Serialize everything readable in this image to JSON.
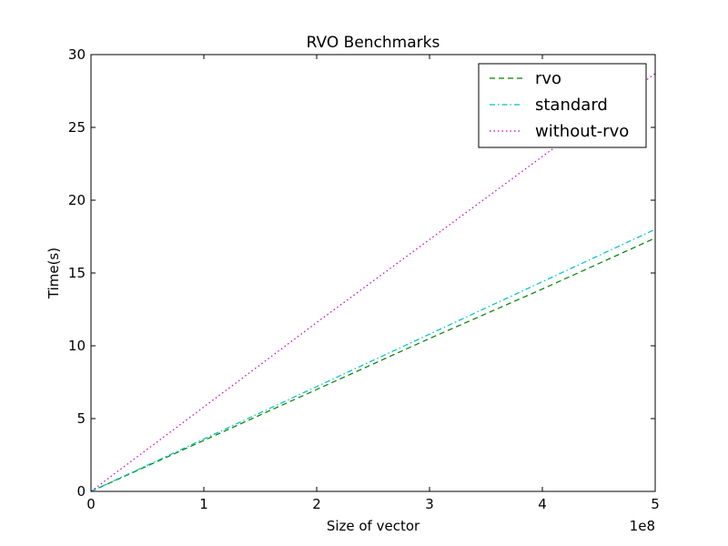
{
  "chart_data": {
    "type": "line",
    "title": "RVO Benchmarks",
    "xlabel": "Size of vector",
    "ylabel": "Time(s)",
    "x_offset_label": "1e8",
    "xlim": [
      0,
      5
    ],
    "ylim": [
      0,
      30
    ],
    "xticks": [
      "0",
      "1",
      "2",
      "3",
      "4",
      "5"
    ],
    "yticks": [
      "0",
      "5",
      "10",
      "15",
      "20",
      "25",
      "30"
    ],
    "grid": false,
    "legend_position": "top-right",
    "series": [
      {
        "name": "rvo",
        "color": "#008000",
        "style": "dashed",
        "x": [
          0,
          1,
          2,
          3,
          4,
          5
        ],
        "y": [
          0,
          3.5,
          7.0,
          10.5,
          13.9,
          17.4
        ]
      },
      {
        "name": "standard",
        "color": "#00bfbf",
        "style": "dashdot",
        "x": [
          0,
          1,
          2,
          3,
          4,
          5
        ],
        "y": [
          0,
          3.6,
          7.2,
          10.8,
          14.4,
          18.0
        ]
      },
      {
        "name": "without-rvo",
        "color": "#bf00bf",
        "style": "dotted",
        "x": [
          0,
          1,
          2,
          3,
          4,
          5
        ],
        "y": [
          0,
          5.8,
          11.6,
          17.3,
          23.0,
          28.7
        ]
      }
    ]
  }
}
